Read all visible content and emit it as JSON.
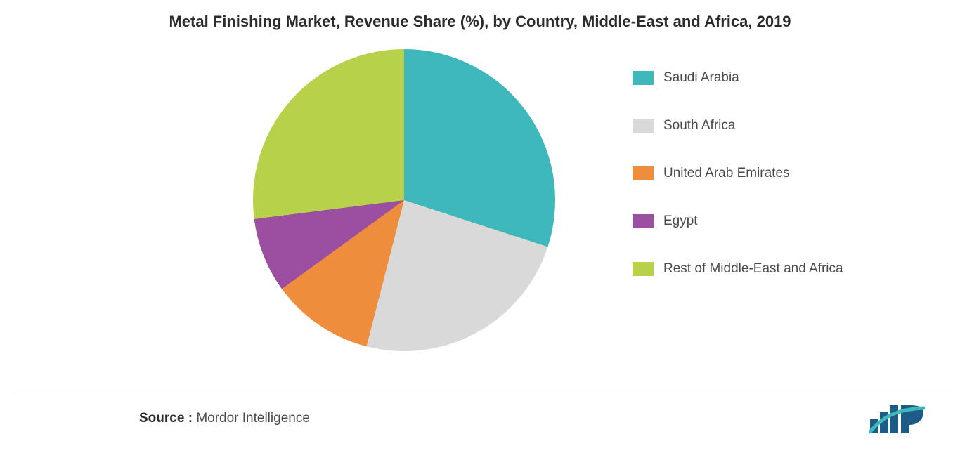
{
  "chart": {
    "type": "pie",
    "title": "Metal Finishing Market, Revenue Share (%), by Country, Middle-East and Africa, 2019",
    "title_fontsize": 22,
    "title_color": "#2c2c2c",
    "background_color": "#ffffff",
    "slices": [
      {
        "label": "Saudi Arabia",
        "value": 30,
        "color": "#3fb8bb"
      },
      {
        "label": "South Africa",
        "value": 24,
        "color": "#d9d9d9"
      },
      {
        "label": "United Arab Emirates",
        "value": 11,
        "color": "#ee8d3c"
      },
      {
        "label": "Egypt",
        "value": 8,
        "color": "#9b4fa0"
      },
      {
        "label": "Rest of Middle-East and Africa",
        "value": 27,
        "color": "#b7d24a"
      }
    ],
    "start_angle_deg": 0,
    "legend": {
      "position": "right",
      "fontsize": 19,
      "text_color": "#4a4a4a",
      "swatch_w": 30,
      "swatch_h": 20,
      "gap": 46
    }
  },
  "source": {
    "label": "Source :",
    "value": "Mordor Intelligence",
    "fontsize": 19
  },
  "logo": {
    "bars_color": "#1e5c88",
    "accent_color": "#3fb8bb"
  }
}
